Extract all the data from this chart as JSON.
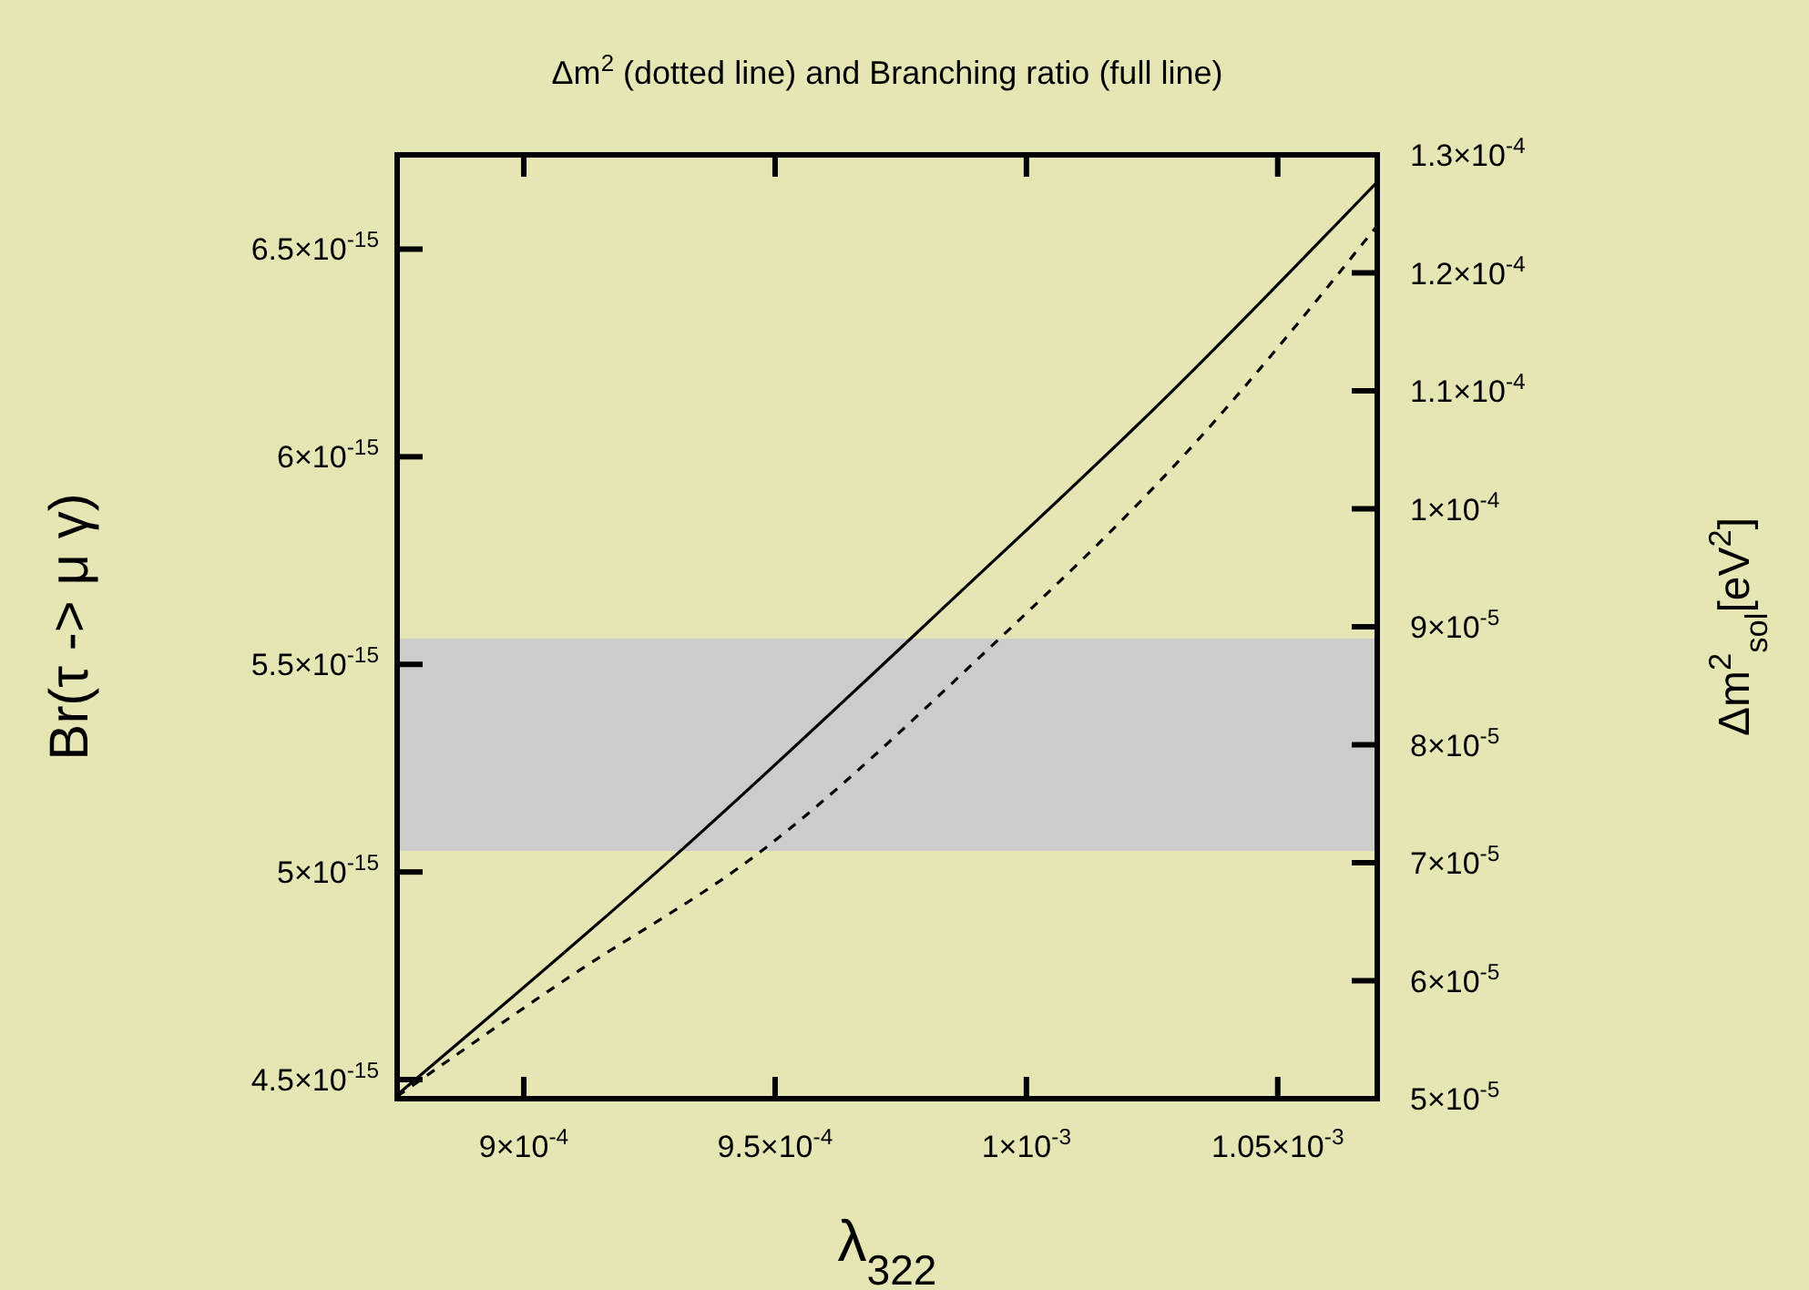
{
  "chart_data": {
    "type": "line",
    "title": "Δm$^{2}$ (dotted line) and Branching ratio (full line)",
    "xlabel": "λ$_{322}$",
    "ylabel": "Br(τ -> μ γ)",
    "y2label": "Δm$^{2}$$_{sol}$[eV$^{2}$]",
    "xlim": [
      0.0008748,
      0.0010698
    ],
    "xticks": [
      {
        "value": 0.0009,
        "label": "9×10$^{-4}$"
      },
      {
        "value": 0.00095,
        "label": "9.5×10$^{-4}$"
      },
      {
        "value": 0.001,
        "label": "1×10$^{-3}$"
      },
      {
        "value": 0.00105,
        "label": "1.05×10$^{-3}$"
      }
    ],
    "ylim": [
      4.454e-15,
      6.727e-15
    ],
    "yticks": [
      {
        "value": 4.5e-15,
        "label": "4.5×10$^{-15}$"
      },
      {
        "value": 5e-15,
        "label": "5×10$^{-15}$"
      },
      {
        "value": 5.5e-15,
        "label": "5.5×10$^{-15}$"
      },
      {
        "value": 6e-15,
        "label": "6×10$^{-15}$"
      },
      {
        "value": 6.5e-15,
        "label": "6.5×10$^{-15}$"
      }
    ],
    "y2lim": [
      5e-05,
      0.00013
    ],
    "y2ticks": [
      {
        "value": 5e-05,
        "label": "5×10$^{-5}$"
      },
      {
        "value": 6e-05,
        "label": "6×10$^{-5}$"
      },
      {
        "value": 7e-05,
        "label": "7×10$^{-5}$"
      },
      {
        "value": 8e-05,
        "label": "8×10$^{-5}$"
      },
      {
        "value": 9e-05,
        "label": "9×10$^{-5}$"
      },
      {
        "value": 0.0001,
        "label": "1×10$^{-4}$"
      },
      {
        "value": 0.00011,
        "label": "1.1×10$^{-4}$"
      },
      {
        "value": 0.00012,
        "label": "1.2×10$^{-4}$"
      },
      {
        "value": 0.00013,
        "label": "1.3×10$^{-4}$"
      }
    ],
    "bands": [
      {
        "axis": "y2",
        "from": 7.1e-05,
        "to": 8.9e-05,
        "color": "#cccccc"
      }
    ],
    "series": [
      {
        "color": "#000000",
        "line_style": "solid",
        "x": [
          0.0008748,
          0.0009311,
          0.0009848,
          0.001029,
          0.0010698
        ],
        "values": [
          4.463e-15,
          5.05e-15,
          5.651e-15,
          6.158e-15,
          6.662e-15
        ]
      },
      {
        "color": "#000000",
        "line_style": "dashed",
        "axis": "y2",
        "x": [
          0.0008748,
          0.0009083,
          0.0009473,
          0.0009909,
          0.0010332,
          0.0010698
        ],
        "values": [
          5.02e-05,
          6.01e-05,
          7.1e-05,
          8.75e-05,
          0.0001054,
          0.000124
        ]
      }
    ]
  }
}
